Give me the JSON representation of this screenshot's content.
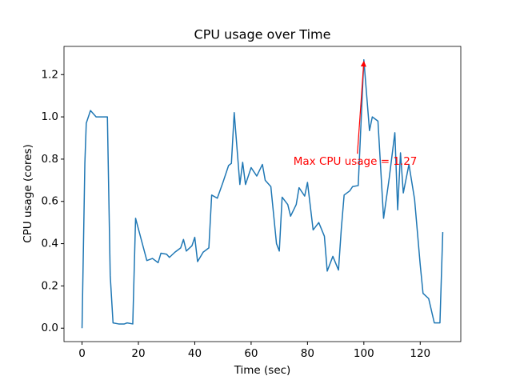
{
  "chart_data": {
    "type": "line",
    "title": "CPU usage over Time",
    "x_label": "Time (sec)",
    "y_label": "CPU usage (cores)",
    "color": "#1f77b4",
    "x": [
      0,
      1,
      1.5,
      3,
      5,
      8,
      9,
      10,
      11,
      13,
      15,
      16,
      18,
      19,
      21,
      23,
      25,
      27,
      28,
      30,
      31,
      33,
      35,
      36,
      37,
      39,
      40,
      41,
      43,
      45,
      46,
      48,
      50,
      52,
      53,
      54,
      56,
      57,
      58,
      60,
      62,
      64,
      65,
      67,
      69,
      70,
      71,
      73,
      74,
      76,
      77,
      79,
      80,
      82,
      84,
      86,
      87,
      89,
      91,
      92,
      93,
      95,
      96,
      98,
      100,
      102,
      103,
      105,
      107,
      109,
      111,
      112,
      113,
      114,
      116,
      118,
      120,
      121,
      123,
      125,
      127,
      128
    ],
    "values": [
      0.0,
      0.78,
      0.97,
      1.03,
      1.0,
      1.0,
      1.0,
      0.25,
      0.025,
      0.02,
      0.02,
      0.025,
      0.02,
      0.52,
      0.42,
      0.32,
      0.33,
      0.31,
      0.355,
      0.35,
      0.335,
      0.36,
      0.38,
      0.42,
      0.365,
      0.39,
      0.43,
      0.315,
      0.36,
      0.38,
      0.63,
      0.615,
      0.69,
      0.77,
      0.78,
      1.02,
      0.68,
      0.785,
      0.68,
      0.76,
      0.72,
      0.775,
      0.7,
      0.67,
      0.4,
      0.365,
      0.62,
      0.585,
      0.53,
      0.585,
      0.665,
      0.625,
      0.69,
      0.465,
      0.5,
      0.435,
      0.27,
      0.34,
      0.275,
      0.47,
      0.63,
      0.65,
      0.67,
      0.675,
      1.27,
      0.935,
      1.0,
      0.98,
      0.52,
      0.71,
      0.925,
      0.56,
      0.83,
      0.64,
      0.775,
      0.61,
      0.3,
      0.165,
      0.14,
      0.025,
      0.025,
      0.455
    ],
    "xlim": [
      -6.4,
      134.4
    ],
    "xticks": [
      0,
      20,
      40,
      60,
      80,
      100,
      120
    ],
    "ylim": [
      -0.0635,
      1.3335
    ],
    "yticks": [
      {
        "value": 0,
        "label": "0.0"
      },
      {
        "value": 0.2,
        "label": "0.2"
      },
      {
        "value": 0.4,
        "label": "0.4"
      },
      {
        "value": 0.6,
        "label": "0.6"
      },
      {
        "value": 0.8,
        "label": "0.8"
      },
      {
        "value": 1,
        "label": "1.0"
      },
      {
        "value": 1.2,
        "label": "1.2"
      }
    ],
    "annotation": {
      "text": "Max CPU usage = 1.27",
      "xy": [
        100,
        1.27
      ],
      "xytext": [
        75,
        0.78
      ],
      "color": "red"
    }
  }
}
